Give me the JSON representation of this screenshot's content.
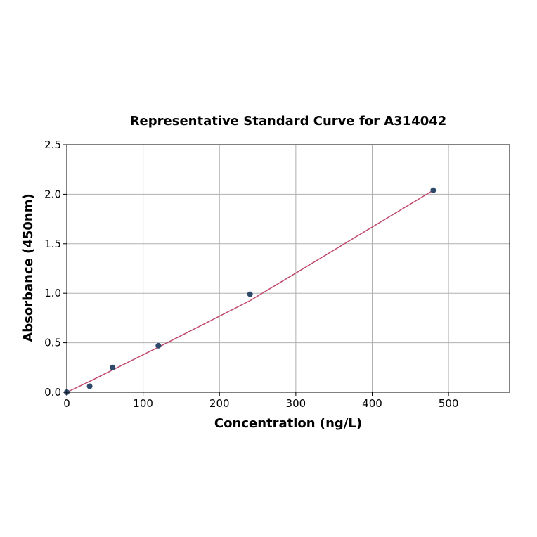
{
  "chart_data": {
    "type": "scatter",
    "title": "Representative Standard Curve for A314042",
    "xlabel": "Concentration (ng/L)",
    "ylabel": "Absorbance (450nm)",
    "xlim": [
      0,
      580
    ],
    "ylim": [
      0,
      2.5
    ],
    "xticks": [
      0,
      100,
      200,
      300,
      400,
      500
    ],
    "xtick_labels": [
      "0",
      "100",
      "200",
      "300",
      "400",
      "500"
    ],
    "yticks": [
      0,
      0.5,
      1.0,
      1.5,
      2.0,
      2.5
    ],
    "ytick_labels": [
      "0.0",
      "0.5",
      "1.0",
      "1.5",
      "2.0",
      "2.5"
    ],
    "grid": true,
    "series": [
      {
        "type": "scatter",
        "x": [
          0,
          30,
          60,
          120,
          240,
          480
        ],
        "y": [
          0.0,
          0.06,
          0.25,
          0.47,
          0.99,
          2.04
        ],
        "color": "#2e4a6b"
      },
      {
        "type": "line",
        "x": [
          0,
          30,
          60,
          120,
          240,
          480
        ],
        "y": [
          -0.01,
          0.11,
          0.225,
          0.455,
          0.925,
          2.04
        ],
        "color": "#c0496b"
      }
    ]
  }
}
